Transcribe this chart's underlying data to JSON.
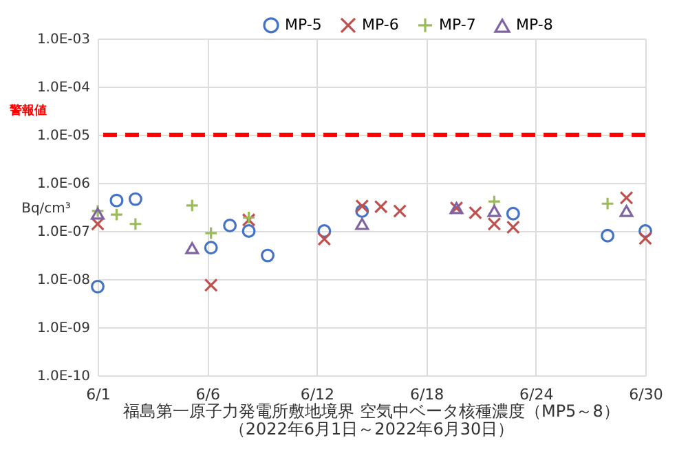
{
  "chart_data": {
    "type": "scatter",
    "title": "福島第一原子力発電所敷地境界  空気中ベータ核種濃度（MP5～8）",
    "subtitle": "（2022年6月1日～2022年6月30日）",
    "ylabel": "Bq/cm³",
    "log": "y",
    "grid": true,
    "legend": "top",
    "xlim": [
      "2022-06-01",
      "2022-06-30"
    ],
    "xticks": [
      {
        "value": "2022-06-01",
        "label": "6/1"
      },
      {
        "value": "2022-06-06T19:12",
        "label": "6/6"
      },
      {
        "value": "2022-06-12T14:24",
        "label": "6/12"
      },
      {
        "value": "2022-06-18T09:36",
        "label": "6/18"
      },
      {
        "value": "2022-06-24T04:48",
        "label": "6/24"
      },
      {
        "value": "2022-06-30",
        "label": "6/30"
      }
    ],
    "ylim": [
      1e-10,
      0.001
    ],
    "yticks": [
      {
        "value": 1e-10,
        "label": "1.0E-10"
      },
      {
        "value": 1e-09,
        "label": "1.0E-09"
      },
      {
        "value": 1e-08,
        "label": "1.0E-08"
      },
      {
        "value": 1e-07,
        "label": "1.0E-07"
      },
      {
        "value": 1e-06,
        "label": "1.0E-06"
      },
      {
        "value": 1e-05,
        "label": "1.0E-05"
      },
      {
        "value": 0.0001,
        "label": "1.0E-04"
      },
      {
        "value": 0.001,
        "label": "1.0E-03"
      }
    ],
    "ref_lines": [
      {
        "axis": "y",
        "value": 1e-05,
        "label": "警報値",
        "color": "#ff0000",
        "line_style": "dashed"
      }
    ],
    "series": [
      {
        "name": "MP-5",
        "color": "#4472c4",
        "marker": "circle",
        "x": [
          "2022-06-01",
          "2022-06-02",
          "2022-06-03",
          "2022-06-07",
          "2022-06-08",
          "2022-06-09",
          "2022-06-10",
          "2022-06-13",
          "2022-06-15",
          "2022-06-23",
          "2022-06-28",
          "2022-06-30"
        ],
        "values": [
          7e-09,
          4.3e-07,
          4.6e-07,
          4.5e-08,
          1.3e-07,
          1e-07,
          3.1e-08,
          1e-07,
          2.6e-07,
          2.3e-07,
          8e-08,
          1e-07
        ]
      },
      {
        "name": "MP-6",
        "color": "#c0504d",
        "marker": "cross",
        "x": [
          "2022-06-01",
          "2022-06-07",
          "2022-06-09",
          "2022-06-13",
          "2022-06-15",
          "2022-06-16",
          "2022-06-17",
          "2022-06-20",
          "2022-06-21",
          "2022-06-22",
          "2022-06-23",
          "2022-06-29",
          "2022-06-30"
        ],
        "values": [
          1.4e-07,
          7.5e-09,
          1.7e-07,
          6.8e-08,
          3.3e-07,
          3.2e-07,
          2.6e-07,
          3e-07,
          2.4e-07,
          1.4e-07,
          1.2e-07,
          4.9e-07,
          7e-08
        ]
      },
      {
        "name": "MP-7",
        "color": "#9bbb59",
        "marker": "plus",
        "x": [
          "2022-06-01",
          "2022-06-02",
          "2022-06-03",
          "2022-06-06",
          "2022-06-07",
          "2022-06-09",
          "2022-06-22",
          "2022-06-28"
        ],
        "values": [
          2.6e-07,
          2.2e-07,
          1.4e-07,
          3.4e-07,
          9e-08,
          1.9e-07,
          4.1e-07,
          3.7e-07
        ]
      },
      {
        "name": "MP-8",
        "color": "#8064a2",
        "marker": "triangle",
        "x": [
          "2022-06-01",
          "2022-06-06",
          "2022-06-15",
          "2022-06-20",
          "2022-06-22",
          "2022-06-29"
        ],
        "values": [
          2.3e-07,
          4.4e-08,
          1.4e-07,
          3e-07,
          2.6e-07,
          2.6e-07
        ]
      }
    ]
  }
}
